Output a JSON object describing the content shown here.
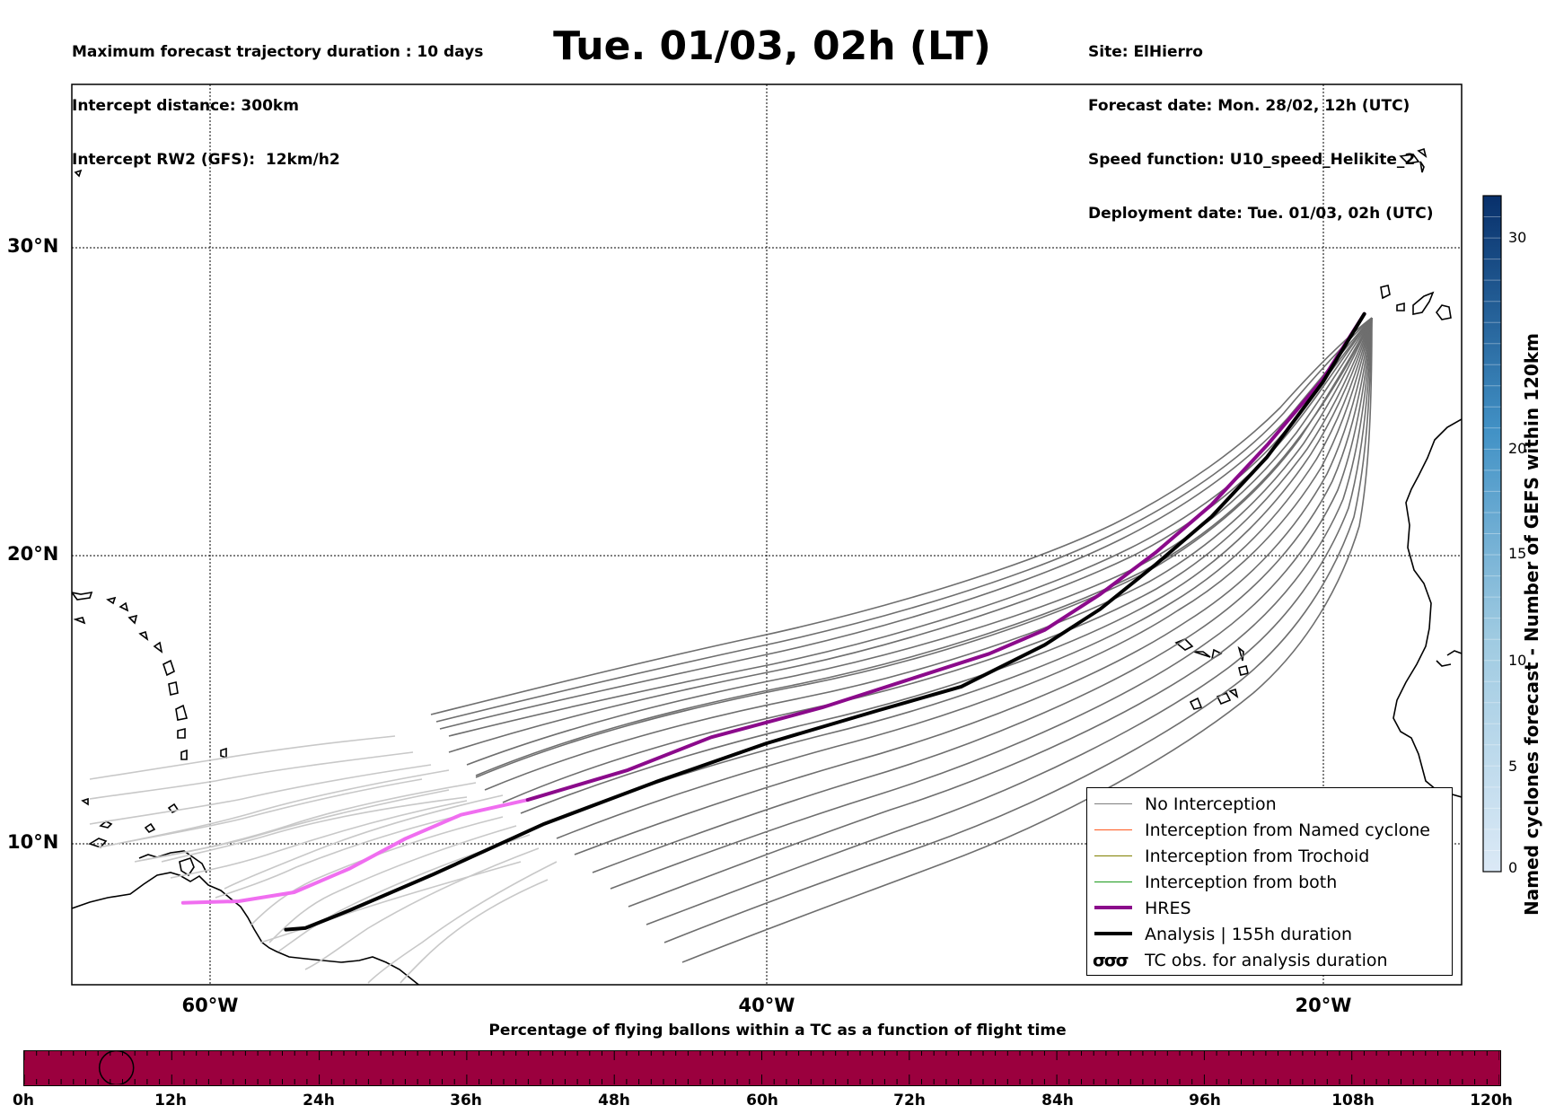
{
  "header": {
    "left": [
      "Maximum forecast trajectory duration : 10 days",
      "Intercept distance: 300km",
      "Intercept RW2 (GFS):  12km/h2"
    ],
    "title": "Tue. 01/03, 02h (LT)",
    "right": [
      "Site: ElHierro",
      "Forecast date: Mon. 28/02, 12h (UTC)",
      "Speed function: U10_speed_Helikite_2",
      "Deployment date: Tue. 01/03, 02h (UTC)"
    ]
  },
  "map": {
    "lat_labels": [
      "30°N",
      "20°N",
      "10°N"
    ],
    "lon_labels": [
      "60°W",
      "40°W",
      "20°W"
    ],
    "lat_range": [
      5.1,
      35.3
    ],
    "lon_range": [
      -65.0,
      -15.0
    ]
  },
  "legend": {
    "items": [
      {
        "label": "No Interception",
        "color": "#7f7f7f"
      },
      {
        "label": "Interception from Named cyclone",
        "color": "#ff5a1f"
      },
      {
        "label": "Interception from Trochoid",
        "color": "#808000"
      },
      {
        "label": "Interception from both",
        "color": "#1a9a1a"
      },
      {
        "label": "HRES",
        "color": "#8b0a8b"
      },
      {
        "label": "Analysis | 155h duration",
        "color": "#000000"
      },
      {
        "label": "TC obs. for analysis duration",
        "symbol": "σσσ"
      }
    ]
  },
  "colorbar": {
    "label": "Named cyclones forecast - Number of GEFS within 120km",
    "ticks": [
      "0",
      "5",
      "10",
      "15",
      "20",
      "30"
    ],
    "range": [
      0,
      32
    ],
    "color_low": "#dbe9f6",
    "color_high": "#08306b"
  },
  "timebar": {
    "title": "Percentage of flying ballons within a TC as a function of flight time",
    "labels": [
      "0h",
      "12h",
      "24h",
      "36h",
      "48h",
      "60h",
      "72h",
      "84h",
      "96h",
      "108h",
      "120h"
    ],
    "color": "#9b003e",
    "marker_hours": 7.5
  },
  "tracks": {
    "analysis": [
      [
        -18.5,
        27.6
      ],
      [
        -20,
        25.3
      ],
      [
        -22,
        22.8
      ],
      [
        -24,
        20.8
      ],
      [
        -26,
        19.2
      ],
      [
        -28,
        17.7
      ],
      [
        -30,
        16.5
      ],
      [
        -33,
        15.1
      ],
      [
        -36,
        14.3
      ],
      [
        -40,
        13.2
      ],
      [
        -44,
        11.9
      ],
      [
        -48,
        10.5
      ],
      [
        -52,
        8.8
      ],
      [
        -55,
        7.6
      ],
      [
        -56.6,
        7.0
      ],
      [
        -57.3,
        6.95
      ]
    ],
    "hres_dark": [
      [
        -18.5,
        27.6
      ],
      [
        -20,
        25.4
      ],
      [
        -22,
        23.2
      ],
      [
        -24,
        21.2
      ],
      [
        -26,
        19.6
      ],
      [
        -28,
        18.2
      ],
      [
        -30,
        17.0
      ],
      [
        -32,
        16.2
      ],
      [
        -35,
        15.3
      ],
      [
        -38,
        14.4
      ],
      [
        -42,
        13.4
      ],
      [
        -45,
        12.3
      ],
      [
        -48.6,
        11.3
      ]
    ],
    "hres_light": [
      [
        -48.6,
        11.3
      ],
      [
        -51,
        10.8
      ],
      [
        -53,
        10.0
      ],
      [
        -55,
        9.0
      ],
      [
        -57,
        8.2
      ],
      [
        -59,
        7.9
      ],
      [
        -61,
        7.85
      ]
    ]
  }
}
